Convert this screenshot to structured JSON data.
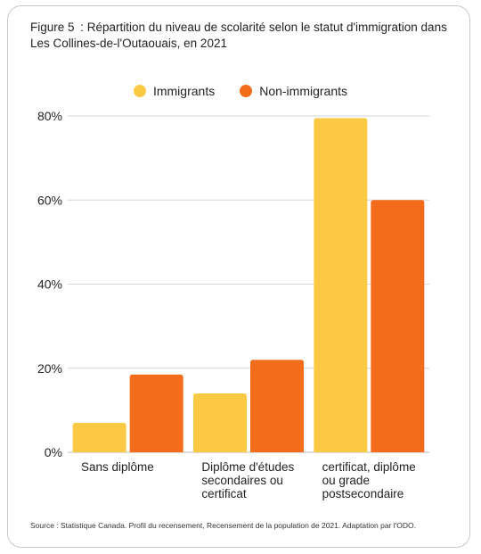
{
  "title": "Figure 5 : Répartition du niveau de scolarité selon le statut d'immigration dans Les Collines-de-l'Outaouais, en 2021",
  "source": "Source : Statistique Canada. Profil du recensement, Recensement de la population de 2021. Adaptation par l'ODO.",
  "chart_data": {
    "type": "bar",
    "categories": [
      [
        "Sans diplôme"
      ],
      [
        "Diplôme d'études",
        "secondaires ou",
        "certificat"
      ],
      [
        "certificat, diplôme",
        "ou grade",
        "postsecondaire"
      ]
    ],
    "series": [
      {
        "name": "Immigrants",
        "color": "#fcc945",
        "values": [
          7,
          14,
          79.5
        ]
      },
      {
        "name": "Non-immigrants",
        "color": "#f26c1c",
        "values": [
          18.5,
          22,
          60
        ]
      }
    ],
    "yticks": [
      "0%",
      "20%",
      "40%",
      "60%",
      "80%"
    ],
    "ytick_values": [
      0,
      20,
      40,
      60,
      80
    ],
    "ylim": [
      0,
      80
    ],
    "grid": true,
    "legend_position": "top-center"
  }
}
